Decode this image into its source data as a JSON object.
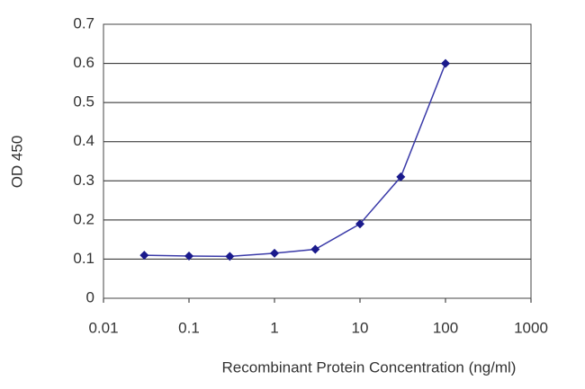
{
  "chart_data": {
    "type": "line",
    "xlabel": "Recombinant Protein Concentration (ng/ml)",
    "ylabel": "OD 450",
    "x": [
      0.03,
      0.1,
      0.3,
      1,
      3,
      10,
      30,
      100
    ],
    "values": [
      0.11,
      0.108,
      0.107,
      0.115,
      0.125,
      0.19,
      0.31,
      0.6
    ],
    "color": "#1a1a8c",
    "xscale": "log",
    "xlim": [
      0.01,
      1000
    ],
    "xticks": [
      0.01,
      0.1,
      1,
      10,
      100,
      1000
    ],
    "ylim": [
      0,
      0.7
    ],
    "yticks": [
      0,
      0.1,
      0.2,
      0.3,
      0.4,
      0.5,
      0.6,
      0.7
    ],
    "grid": true
  }
}
